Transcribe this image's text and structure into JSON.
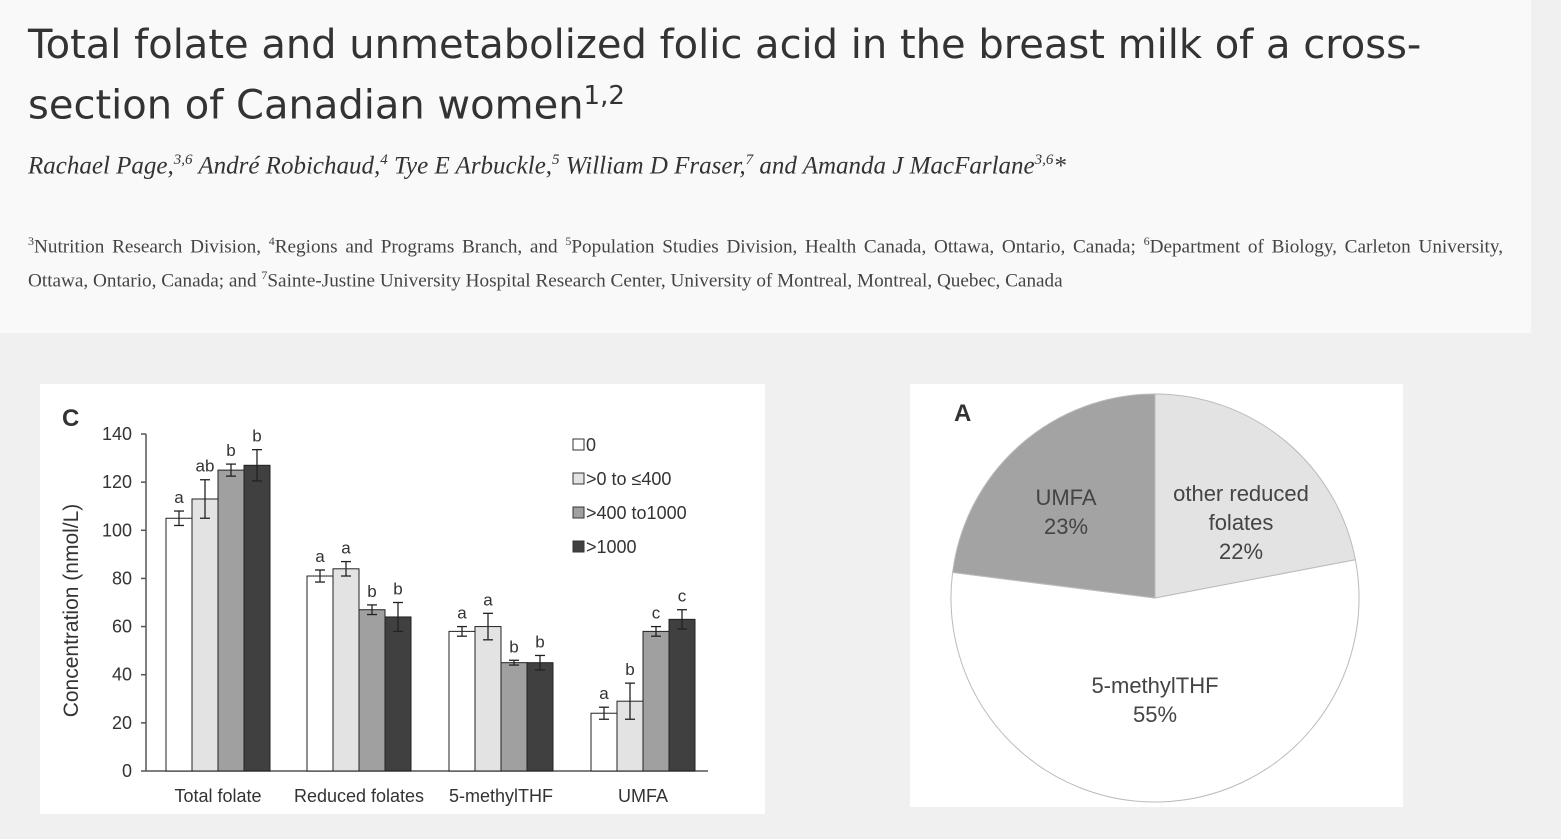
{
  "header": {
    "title_main": "Total folate and unmetabolized folic acid in the breast milk of a cross-section of Canadian women",
    "title_sup": "1,2",
    "authors": [
      {
        "name": "Rachael Page,",
        "sup": "3,6"
      },
      {
        "name": " André Robichaud,",
        "sup": "4"
      },
      {
        "name": " Tye E Arbuckle,",
        "sup": "5"
      },
      {
        "name": " William D Fraser,",
        "sup": "7"
      },
      {
        "name": " and Amanda J MacFarlane",
        "sup": "3,6"
      }
    ],
    "authors_tail": "*",
    "affiliations": [
      {
        "sup": "3",
        "text": "Nutrition Research Division, "
      },
      {
        "sup": "4",
        "text": "Regions and Programs Branch, and "
      },
      {
        "sup": "5",
        "text": "Population Studies Division, Health Canada, Ottawa, Ontario, Canada; "
      },
      {
        "sup": "6",
        "text": "Department of Biology, Carleton University, Ottawa, Ontario, Canada; and "
      },
      {
        "sup": "7",
        "text": "Sainte-Justine University Hospital Research Center, University of Montreal, Montreal, Quebec, Canada"
      }
    ]
  },
  "colors": {
    "series": [
      "#ffffff",
      "#e3e3e3",
      "#a0a0a0",
      "#404040"
    ],
    "pie": [
      "#e3e3e3",
      "#ffffff",
      "#a3a3a3"
    ]
  },
  "chart_data": [
    {
      "panel": "C",
      "type": "bar",
      "ylabel": "Concentration (nmol/L)",
      "ylim": [
        0,
        140
      ],
      "yticks": [
        0,
        20,
        40,
        60,
        80,
        100,
        120,
        140
      ],
      "categories": [
        "Total folate",
        "Reduced folates",
        "5-methylTHF",
        "UMFA"
      ],
      "legend_position": "top-right",
      "series": [
        {
          "name": "0",
          "values": [
            105,
            81,
            58,
            24
          ],
          "errors": [
            3,
            2.5,
            2,
            2.5
          ],
          "letters": [
            "a",
            "a",
            "a",
            "a"
          ]
        },
        {
          "name": ">0 to ≤400",
          "values": [
            113,
            84,
            60,
            29
          ],
          "errors": [
            8,
            3,
            5.5,
            7.5
          ],
          "letters": [
            "ab",
            "a",
            "a",
            "b"
          ]
        },
        {
          "name": ">400 to1000",
          "values": [
            125,
            67,
            45,
            58
          ],
          "errors": [
            2.5,
            2,
            1,
            2
          ],
          "letters": [
            "b",
            "b",
            "b",
            "c"
          ]
        },
        {
          "name": ">1000",
          "values": [
            127,
            64,
            45,
            63
          ],
          "errors": [
            6.5,
            6,
            3,
            4
          ],
          "letters": [
            "b",
            "b",
            "b",
            "c"
          ]
        }
      ]
    },
    {
      "panel": "A",
      "type": "pie",
      "slices": [
        {
          "label": "other reduced folates",
          "value": 22,
          "value_label": "22%"
        },
        {
          "label": "5-methylTHF",
          "value": 55,
          "value_label": "55%"
        },
        {
          "label": "UMFA",
          "value": 23,
          "value_label": "23%"
        }
      ]
    }
  ]
}
